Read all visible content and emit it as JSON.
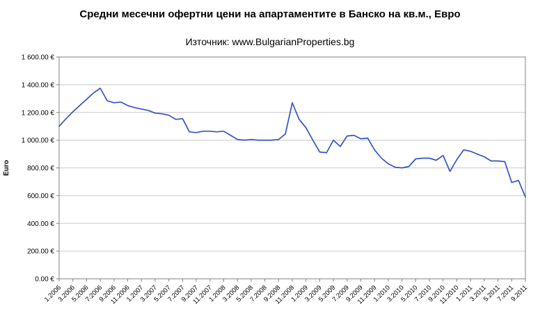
{
  "chart_data": {
    "type": "line",
    "title": "Средни месечни офертни цени на апартаментите в Банско на кв.м., Евро",
    "subtitle": "Източник: www.BulgarianProperties.bg",
    "ylabel": "Euro",
    "xlabel": "",
    "ylim": [
      0,
      1600
    ],
    "ytick_step": 200,
    "ytick_labels": [
      "0.00 €",
      "200.00 €",
      "400.00 €",
      "600.00 €",
      "800.00 €",
      "1 000.00 €",
      "1 200.00 €",
      "1 400.00 €",
      "1 600.00 €"
    ],
    "xtick_every": 2,
    "grid": true,
    "legend_position": "none",
    "line_color": "#3353c6",
    "grid_color": "#c9c9c9",
    "axis_color": "#808080",
    "x": [
      "1.2006",
      "2.2006",
      "3.2006",
      "4.2006",
      "5.2006",
      "6.2006",
      "7.2006",
      "8.2006",
      "9.2006",
      "10.2006",
      "11.2006",
      "12.2006",
      "1.2007",
      "2.2007",
      "3.2007",
      "4.2007",
      "5.2007",
      "6.2007",
      "7.2007",
      "8.2007",
      "9.2007",
      "10.2007",
      "11.2007",
      "12.2007",
      "1.2008",
      "2.2008",
      "3.2008",
      "4.2008",
      "5.2008",
      "6.2008",
      "7.2008",
      "8.2008",
      "9.2008",
      "10.2008",
      "11.2008",
      "12.2008",
      "1.2009",
      "2.2009",
      "3.2009",
      "4.2009",
      "5.2009",
      "6.2009",
      "7.2009",
      "8.2009",
      "9.2009",
      "10.2009",
      "11.2009",
      "12.2009",
      "1.2010",
      "2.2010",
      "3.2010",
      "4.2010",
      "5.2010",
      "6.2010",
      "7.2010",
      "8.2010",
      "9.2010",
      "10.2010",
      "11.2010",
      "12.2010",
      "1.2011",
      "2.2011",
      "3.2011",
      "4.2011",
      "5.2011",
      "6.2011",
      "7.2011",
      "8.2011",
      "9.2011"
    ],
    "values": [
      1100,
      1155,
      1205,
      1250,
      1295,
      1340,
      1375,
      1285,
      1270,
      1275,
      1250,
      1235,
      1225,
      1215,
      1195,
      1190,
      1180,
      1150,
      1155,
      1060,
      1055,
      1065,
      1065,
      1060,
      1065,
      1035,
      1005,
      1000,
      1005,
      1000,
      1000,
      1000,
      1005,
      1045,
      1270,
      1150,
      1090,
      1000,
      915,
      910,
      1000,
      955,
      1030,
      1035,
      1010,
      1015,
      930,
      870,
      830,
      805,
      800,
      810,
      865,
      870,
      870,
      855,
      890,
      775,
      860,
      930,
      920,
      900,
      880,
      850,
      850,
      845,
      695,
      710,
      590
    ]
  }
}
